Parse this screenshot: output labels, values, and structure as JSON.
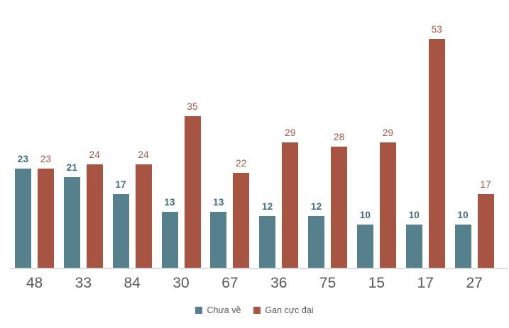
{
  "chart_data": {
    "type": "bar",
    "categories": [
      "48",
      "33",
      "84",
      "30",
      "67",
      "36",
      "75",
      "15",
      "17",
      "27"
    ],
    "series": [
      {
        "name": "Chưa về",
        "color": "#56808C",
        "label_color": "#3E6D7D",
        "values": [
          23,
          21,
          17,
          13,
          13,
          12,
          12,
          10,
          10,
          10
        ]
      },
      {
        "name": "Gan cực đại",
        "color": "#A85442",
        "label_color": "#A85442",
        "values": [
          23,
          24,
          24,
          35,
          22,
          29,
          28,
          29,
          53,
          17
        ]
      }
    ],
    "title": "",
    "xlabel": "",
    "ylabel": "",
    "ylim": [
      0,
      55
    ],
    "grid": false,
    "bar_value_labels": true,
    "legend_position": "bottom",
    "axis_line_color": "#DCDCDC",
    "axis_text_color": "#595959"
  }
}
